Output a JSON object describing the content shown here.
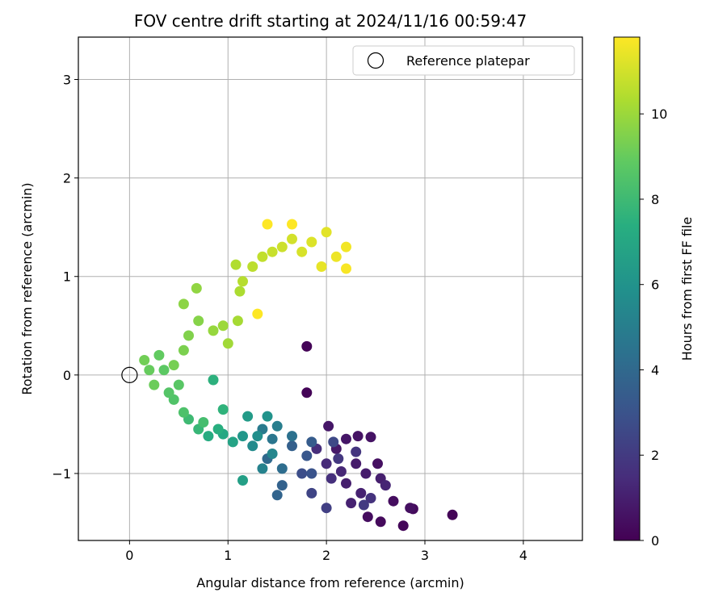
{
  "chart_data": {
    "type": "scatter",
    "title": "FOV centre drift starting at 2024/11/16 00:59:47",
    "xlabel": "Angular distance from reference (arcmin)",
    "ylabel": "Rotation from reference (arcmin)",
    "xlim": [
      -0.52,
      4.6
    ],
    "ylim": [
      -1.68,
      3.43
    ],
    "x_ticks": [
      0,
      1,
      2,
      3,
      4
    ],
    "y_ticks": [
      -1,
      0,
      1,
      2,
      3
    ],
    "x_tick_labels": [
      "0",
      "1",
      "2",
      "3",
      "4"
    ],
    "y_tick_labels": [
      "−1",
      "0",
      "1",
      "2",
      "3"
    ],
    "grid": true,
    "legend": {
      "placement": "top-right",
      "entries": [
        "Reference platepar"
      ]
    },
    "colorbar": {
      "label": "Hours from first FF file",
      "range": [
        0,
        11.8
      ],
      "ticks": [
        0,
        2,
        4,
        6,
        8,
        10
      ],
      "tick_labels": [
        "0",
        "2",
        "4",
        "6",
        "8",
        "10"
      ],
      "colormap": "viridis"
    },
    "reference_point": {
      "name": "Reference platepar",
      "x": 0,
      "y": 0
    },
    "series": [
      {
        "name": "",
        "points": [
          [
            1.8,
            0.29,
            0.1
          ],
          [
            1.8,
            -0.18,
            0.1
          ],
          [
            3.28,
            -1.42,
            0.1
          ],
          [
            2.78,
            -1.53,
            0.2
          ],
          [
            2.88,
            -1.36,
            0.3
          ],
          [
            2.55,
            -1.49,
            0.3
          ],
          [
            2.42,
            -1.44,
            0.4
          ],
          [
            2.68,
            -1.28,
            0.4
          ],
          [
            2.85,
            -1.35,
            0.5
          ],
          [
            2.52,
            -0.9,
            0.5
          ],
          [
            2.32,
            -0.62,
            0.6
          ],
          [
            2.45,
            -0.63,
            0.6
          ],
          [
            2.2,
            -0.65,
            0.7
          ],
          [
            2.02,
            -0.52,
            0.7
          ],
          [
            2.1,
            -0.75,
            0.8
          ],
          [
            2.3,
            -0.9,
            0.9
          ],
          [
            2.4,
            -1.0,
            0.9
          ],
          [
            2.2,
            -1.1,
            1.0
          ],
          [
            2.55,
            -1.05,
            1.0
          ],
          [
            2.35,
            -1.2,
            1.1
          ],
          [
            2.25,
            -1.3,
            1.1
          ],
          [
            2.6,
            -1.12,
            1.2
          ],
          [
            2.15,
            -0.98,
            1.3
          ],
          [
            2.0,
            -0.9,
            1.4
          ],
          [
            1.9,
            -0.75,
            1.5
          ],
          [
            2.05,
            -1.05,
            1.6
          ],
          [
            2.45,
            -1.25,
            1.7
          ],
          [
            2.3,
            -0.78,
            1.8
          ],
          [
            2.12,
            -0.85,
            1.9
          ],
          [
            2.38,
            -1.32,
            2.0
          ],
          [
            2.0,
            -1.35,
            2.2
          ],
          [
            1.85,
            -1.2,
            2.4
          ],
          [
            2.07,
            -0.68,
            2.6
          ],
          [
            1.75,
            -1.0,
            2.8
          ],
          [
            1.85,
            -1.0,
            3.0
          ],
          [
            1.8,
            -0.82,
            3.2
          ],
          [
            1.85,
            -0.68,
            3.4
          ],
          [
            1.65,
            -0.72,
            3.6
          ],
          [
            1.55,
            -1.12,
            3.7
          ],
          [
            1.5,
            -1.22,
            3.8
          ],
          [
            1.4,
            -0.85,
            4.0
          ],
          [
            1.55,
            -0.95,
            4.2
          ],
          [
            1.65,
            -0.62,
            4.4
          ],
          [
            1.45,
            -0.65,
            4.6
          ],
          [
            1.35,
            -0.55,
            4.8
          ],
          [
            1.5,
            -0.52,
            5.0
          ],
          [
            1.35,
            -0.95,
            5.2
          ],
          [
            1.45,
            -0.8,
            5.4
          ],
          [
            1.25,
            -0.72,
            5.6
          ],
          [
            1.3,
            -0.62,
            5.8
          ],
          [
            1.4,
            -0.42,
            6.0
          ],
          [
            1.15,
            -0.62,
            6.2
          ],
          [
            1.2,
            -0.42,
            6.4
          ],
          [
            1.15,
            -1.07,
            6.6
          ],
          [
            1.05,
            -0.68,
            6.8
          ],
          [
            0.95,
            -0.6,
            7.0
          ],
          [
            0.8,
            -0.62,
            7.2
          ],
          [
            0.9,
            -0.55,
            7.4
          ],
          [
            0.85,
            -0.05,
            7.5
          ],
          [
            0.95,
            -0.35,
            7.6
          ],
          [
            0.7,
            -0.55,
            7.8
          ],
          [
            0.6,
            -0.45,
            8.0
          ],
          [
            0.75,
            -0.48,
            8.2
          ],
          [
            0.55,
            -0.38,
            8.4
          ],
          [
            0.45,
            -0.25,
            8.5
          ],
          [
            0.4,
            -0.18,
            8.6
          ],
          [
            0.5,
            -0.1,
            8.7
          ],
          [
            0.35,
            0.05,
            8.8
          ],
          [
            0.3,
            0.2,
            8.9
          ],
          [
            0.2,
            0.05,
            9.0
          ],
          [
            0.25,
            -0.1,
            9.1
          ],
          [
            0.15,
            0.15,
            9.2
          ],
          [
            0.45,
            0.1,
            9.3
          ],
          [
            0.55,
            0.25,
            9.4
          ],
          [
            0.6,
            0.4,
            9.5
          ],
          [
            0.7,
            0.55,
            9.6
          ],
          [
            0.55,
            0.72,
            9.7
          ],
          [
            0.68,
            0.88,
            9.8
          ],
          [
            0.85,
            0.45,
            9.9
          ],
          [
            0.95,
            0.5,
            10.0
          ],
          [
            1.0,
            0.32,
            10.1
          ],
          [
            1.1,
            0.55,
            10.2
          ],
          [
            1.12,
            0.85,
            10.3
          ],
          [
            1.08,
            1.12,
            10.4
          ],
          [
            1.15,
            0.95,
            10.5
          ],
          [
            1.25,
            1.1,
            10.6
          ],
          [
            1.35,
            1.2,
            10.7
          ],
          [
            1.45,
            1.25,
            10.8
          ],
          [
            1.55,
            1.3,
            10.9
          ],
          [
            1.65,
            1.38,
            11.0
          ],
          [
            1.75,
            1.25,
            11.1
          ],
          [
            1.85,
            1.35,
            11.2
          ],
          [
            2.0,
            1.45,
            11.3
          ],
          [
            1.95,
            1.1,
            11.4
          ],
          [
            2.1,
            1.2,
            11.5
          ],
          [
            2.2,
            1.3,
            11.6
          ],
          [
            2.2,
            1.08,
            11.7
          ],
          [
            1.4,
            1.53,
            11.8
          ],
          [
            1.65,
            1.53,
            11.8
          ],
          [
            1.3,
            0.62,
            11.8
          ]
        ]
      }
    ]
  }
}
